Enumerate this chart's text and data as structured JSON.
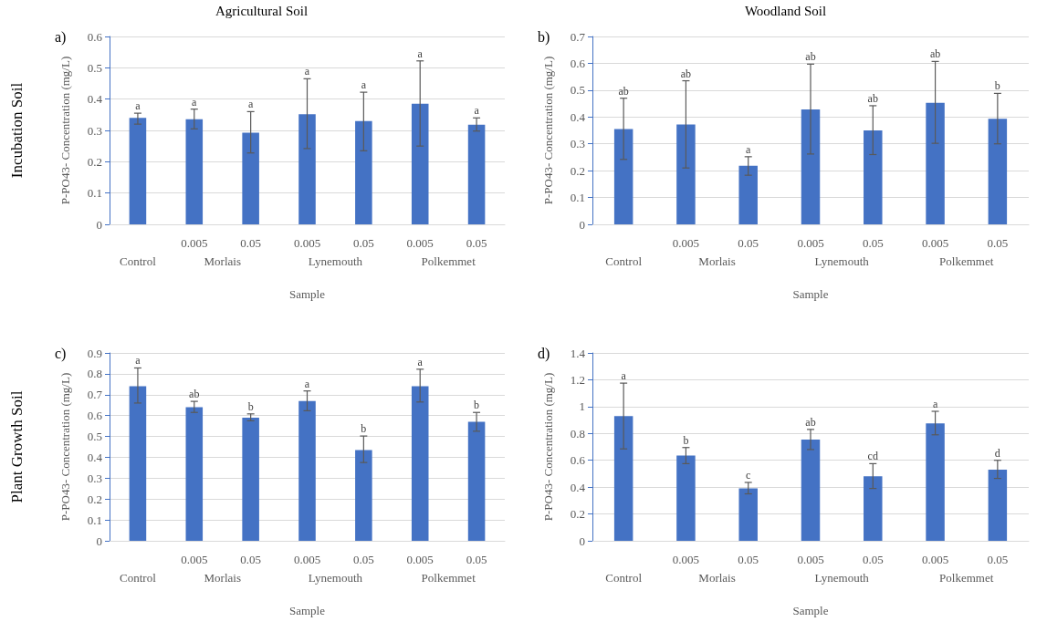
{
  "chart_data": [
    {
      "type": "bar",
      "title": "Agricultural Soil",
      "xlabel": "Sample",
      "ylabel": "P-PO43- Concentration (mg/L)",
      "categories": [
        null,
        "0.005",
        "0.05",
        "0.005",
        "0.05",
        "0.005",
        "0.05"
      ],
      "color": "#4472c4",
      "annotations": [
        "a)",
        "Incubation Soil",
        "Control",
        "Morlais",
        "Lynemouth",
        "Polkemmet",
        "a",
        "a",
        "a",
        "a",
        "a",
        "a",
        "a"
      ],
      "values": [
        0.34,
        0.336,
        0.293,
        0.352,
        0.33,
        0.385,
        0.318
      ],
      "errors": [
        [
          0.32,
          0.355
        ],
        [
          0.305,
          0.368
        ],
        [
          0.228,
          0.36
        ],
        [
          0.242,
          0.465
        ],
        [
          0.235,
          0.422
        ],
        [
          0.25,
          0.522
        ],
        [
          0.298,
          0.34
        ]
      ],
      "ylim": [
        0,
        0.6
      ],
      "yticks": [
        0,
        0.1,
        0.2,
        0.3,
        0.4,
        0.5,
        0.6
      ],
      "grid": "y"
    },
    {
      "type": "bar",
      "title": "Woodland Soil",
      "xlabel": "Sample",
      "ylabel": "P-PO43- Concentration (mg/L)",
      "categories": [
        null,
        "0.005",
        "0.05",
        "0.005",
        "0.05",
        "0.005",
        "0.05"
      ],
      "color": "#4472c4",
      "annotations": [
        "b)",
        "Control",
        "Morlais",
        "Lynemouth",
        "Polkemmet",
        "ab",
        "ab",
        "a",
        "ab",
        "ab",
        "ab",
        "b"
      ],
      "values": [
        0.355,
        0.372,
        0.218,
        0.428,
        0.35,
        0.453,
        0.393
      ],
      "errors": [
        [
          0.242,
          0.47
        ],
        [
          0.21,
          0.535
        ],
        [
          0.183,
          0.252
        ],
        [
          0.262,
          0.597
        ],
        [
          0.26,
          0.442
        ],
        [
          0.302,
          0.607
        ],
        [
          0.3,
          0.488
        ]
      ],
      "ylim": [
        0,
        0.7
      ],
      "yticks": [
        0,
        0.1,
        0.2,
        0.3,
        0.4,
        0.5,
        0.6,
        0.7
      ],
      "grid": "y"
    },
    {
      "type": "bar",
      "xlabel": "Sample",
      "ylabel": "P-PO43- Concentration (mg/L)",
      "categories": [
        null,
        "0.005",
        "0.05",
        "0.005",
        "0.05",
        "0.005",
        "0.05"
      ],
      "color": "#4472c4",
      "annotations": [
        "c)",
        "Plant Growth Soil",
        "Control",
        "Morlais",
        "Lynemouth",
        "Polkemmet",
        "a",
        "ab",
        "b",
        "a",
        "b",
        "a",
        "b"
      ],
      "values": [
        0.74,
        0.64,
        0.59,
        0.67,
        0.435,
        0.74,
        0.57
      ],
      "errors": [
        [
          0.66,
          0.828
        ],
        [
          0.615,
          0.668
        ],
        [
          0.575,
          0.608
        ],
        [
          0.623,
          0.718
        ],
        [
          0.375,
          0.502
        ],
        [
          0.665,
          0.822
        ],
        [
          0.525,
          0.615
        ]
      ],
      "ylim": [
        0,
        0.9
      ],
      "yticks": [
        0,
        0.1,
        0.2,
        0.3,
        0.4,
        0.5,
        0.6,
        0.7,
        0.8,
        0.9
      ],
      "grid": "y"
    },
    {
      "type": "bar",
      "xlabel": "Sample",
      "ylabel": "P-PO43- Concentration (mg/L)",
      "categories": [
        null,
        "0.005",
        "0.05",
        "0.005",
        "0.05",
        "0.005",
        "0.05"
      ],
      "color": "#4472c4",
      "annotations": [
        "d)",
        "Control",
        "Morlais",
        "Lynemouth",
        "Polkemmet",
        "a",
        "b",
        "c",
        "ab",
        "cd",
        "a",
        "d"
      ],
      "values": [
        0.93,
        0.635,
        0.39,
        0.755,
        0.48,
        0.875,
        0.53
      ],
      "errors": [
        [
          0.685,
          1.175
        ],
        [
          0.575,
          0.695
        ],
        [
          0.35,
          0.435
        ],
        [
          0.68,
          0.83
        ],
        [
          0.39,
          0.575
        ],
        [
          0.79,
          0.965
        ],
        [
          0.465,
          0.6
        ]
      ],
      "ylim": [
        0,
        1.4
      ],
      "yticks": [
        0,
        0.2,
        0.4,
        0.6,
        0.8,
        1,
        1.2,
        1.4
      ],
      "grid": "y"
    }
  ]
}
